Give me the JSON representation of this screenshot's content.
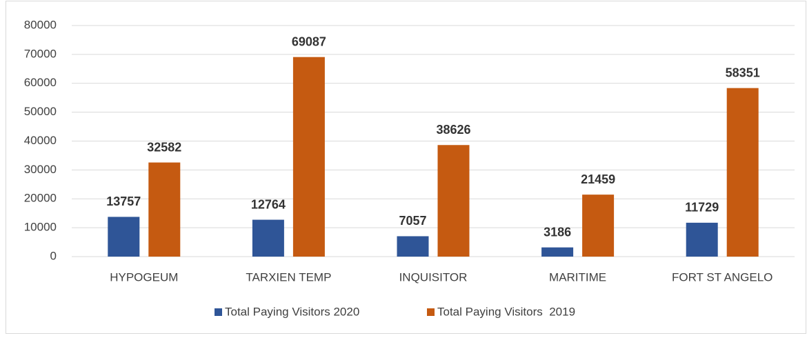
{
  "chart_data": {
    "type": "bar",
    "categories": [
      "HYPOGEUM",
      "TARXIEN TEMP",
      "INQUISITOR",
      "MARITIME",
      "FORT ST ANGELO"
    ],
    "series": [
      {
        "name": "Total Paying Visitors 2020",
        "color": "#2f5597",
        "values": [
          13757,
          12764,
          7057,
          3186,
          11729
        ]
      },
      {
        "name": "Total Paying Visitors  2019",
        "color": "#c55a11",
        "values": [
          32582,
          69087,
          38626,
          21459,
          58351
        ]
      }
    ],
    "ylim": [
      0,
      80000
    ],
    "yticks": [
      0,
      10000,
      20000,
      30000,
      40000,
      50000,
      60000,
      70000,
      80000
    ],
    "grid": true,
    "legend": "bottom"
  }
}
